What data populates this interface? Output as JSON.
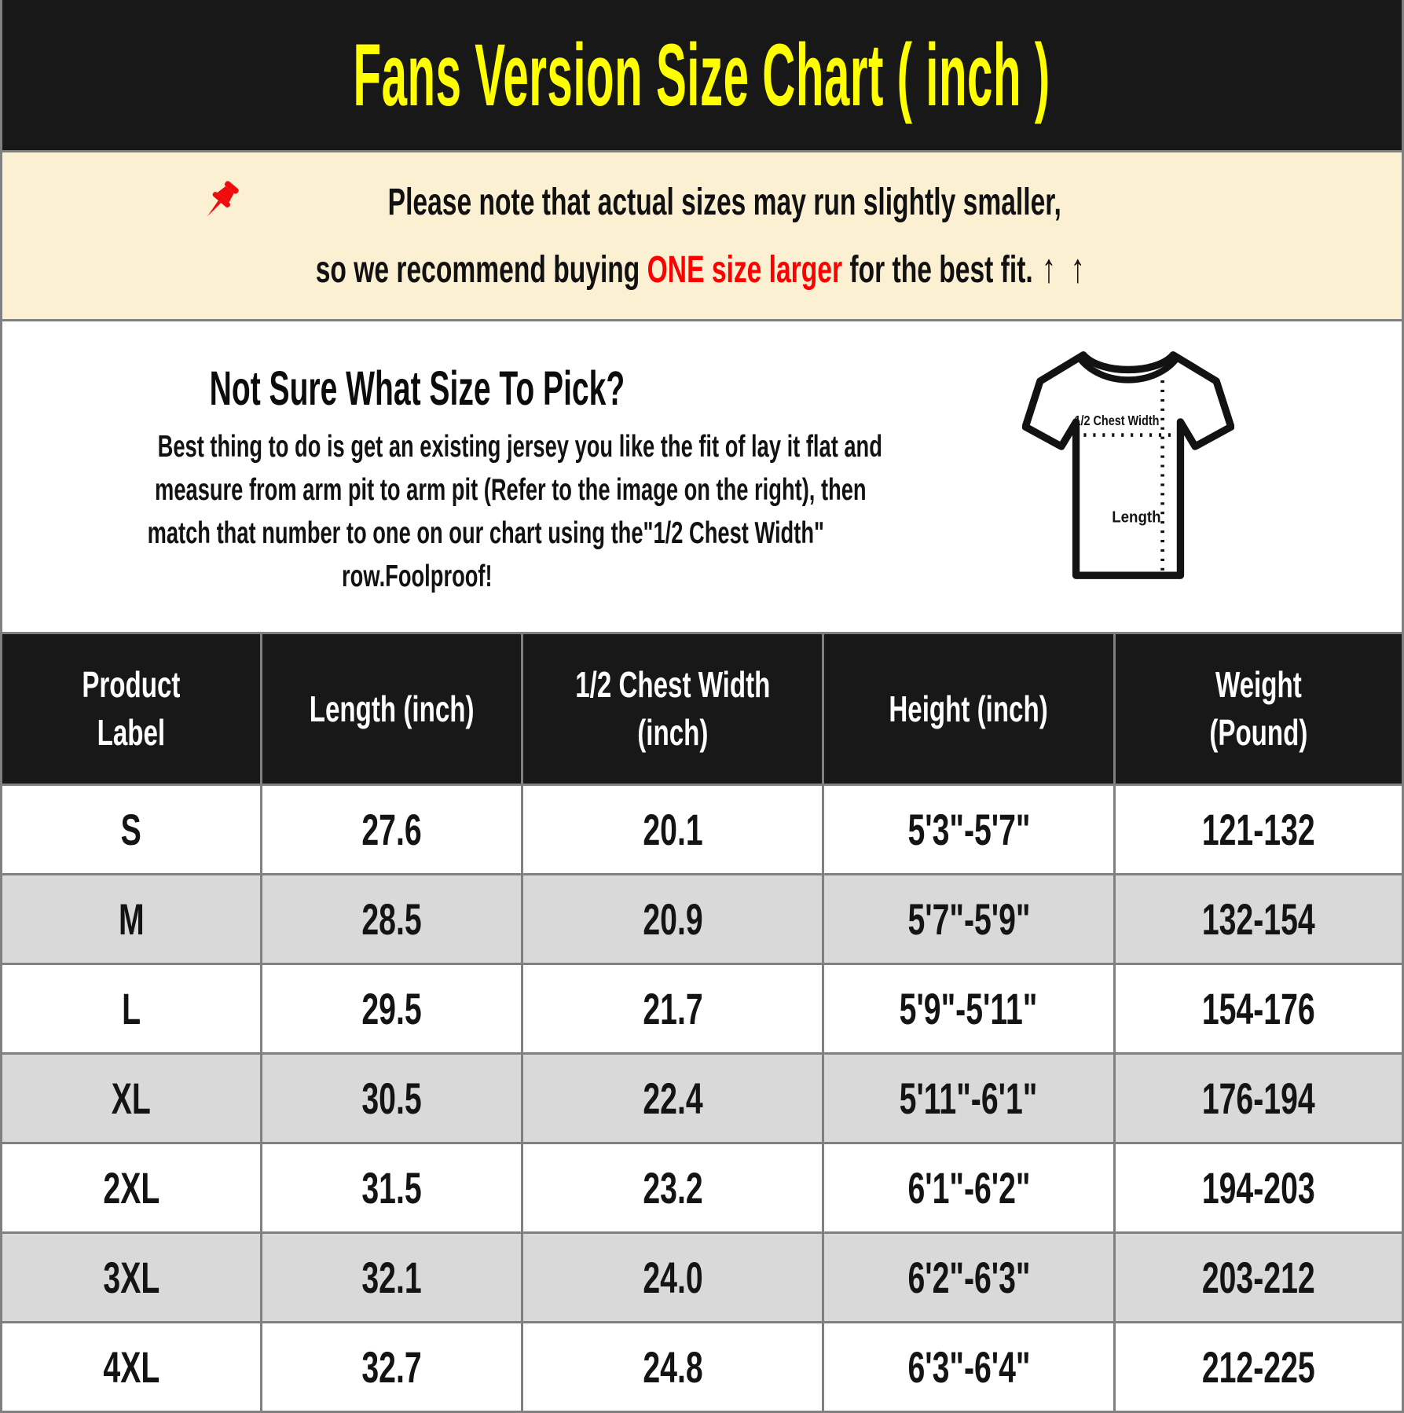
{
  "header": {
    "title": "Fans Version Size Chart ( inch )"
  },
  "notice": {
    "pin_icon": "pushpin-icon",
    "line1": "Please note that actual sizes may run slightly smaller,",
    "line2_prefix": "so we recommend buying ",
    "line2_highlight": "ONE size larger",
    "line2_suffix": " for the best fit.",
    "arrows": "↑ ↑"
  },
  "guide": {
    "heading": "Not Sure What Size To Pick?",
    "lines": [
      "Best thing to do is get an existing jersey you like the fit of lay it flat and",
      "measure from arm pit to arm pit (Refer to the image on the right), then",
      "match that number to one on our chart using the\"1/2 Chest Width\"",
      "row.Foolproof!"
    ],
    "diagram": {
      "chest_label": "1/2 Chest Width",
      "length_label": "Length"
    }
  },
  "size_table": {
    "columns": [
      "Product\nLabel",
      "Length (inch)",
      "1/2 Chest Width\n(inch)",
      "Height (inch)",
      "Weight\n(Pound)"
    ],
    "rows": [
      [
        "S",
        "27.6",
        "20.1",
        "5'3\"-5'7\"",
        "121-132"
      ],
      [
        "M",
        "28.5",
        "20.9",
        "5'7\"-5'9\"",
        "132-154"
      ],
      [
        "L",
        "29.5",
        "21.7",
        "5'9\"-5'11\"",
        "154-176"
      ],
      [
        "XL",
        "30.5",
        "22.4",
        "5'11\"-6'1\"",
        "176-194"
      ],
      [
        "2XL",
        "31.5",
        "23.2",
        "6'1\"-6'2\"",
        "194-203"
      ],
      [
        "3XL",
        "32.1",
        "24.0",
        "6'2\"-6'3\"",
        "203-212"
      ],
      [
        "4XL",
        "32.7",
        "24.8",
        "6'3\"-6'4\"",
        "212-225"
      ]
    ]
  },
  "colors": {
    "banner_bg": "#181818",
    "title_yellow": "#FFFF00",
    "notice_bg": "#FCF0D2",
    "highlight_red": "#FF0000",
    "row_alt_gray": "#D9D9D9",
    "grid_line_gray": "#808080"
  }
}
